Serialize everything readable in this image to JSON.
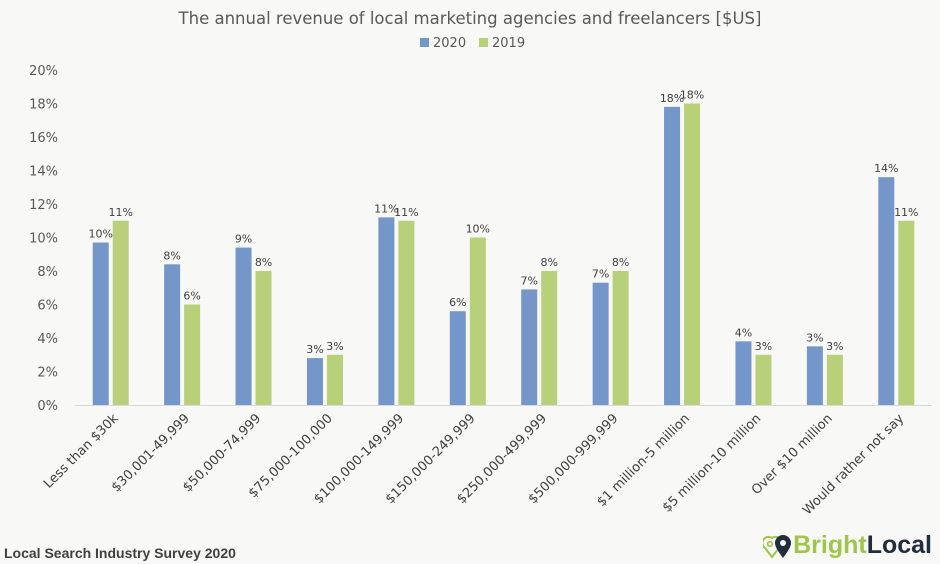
{
  "chart_data": {
    "type": "bar",
    "title": "The annual revenue of local marketing agencies and freelancers [$US]",
    "categories": [
      "Less than $30k",
      "$30,001-49,999",
      "$50,000-74,999",
      "$75,000-100,000",
      "$100,000-149,999",
      "$150,000-249,999",
      "$250,000-499,999",
      "$500,000-999,999",
      "$1 million-5 million",
      "$5 million-10 million",
      "Over $10 million",
      "Would rather not say"
    ],
    "series": [
      {
        "name": "2020",
        "color": "#7496c9",
        "values": [
          9.7,
          8.4,
          9.4,
          2.8,
          11.2,
          5.6,
          6.9,
          7.3,
          17.8,
          3.8,
          3.5,
          13.6
        ],
        "labels": [
          "10%",
          "8%",
          "9%",
          "3%",
          "11%",
          "6%",
          "7%",
          "7%",
          "18%",
          "4%",
          "3%",
          "14%"
        ]
      },
      {
        "name": "2019",
        "color": "#b8d07a",
        "values": [
          11,
          6,
          8,
          3,
          11,
          10,
          8,
          8,
          18,
          3,
          3,
          11
        ],
        "labels": [
          "11%",
          "6%",
          "8%",
          "3%",
          "11%",
          "10%",
          "8%",
          "8%",
          "18%",
          "3%",
          "3%",
          "11%"
        ]
      }
    ],
    "ylim": [
      0,
      20
    ],
    "yticks": [
      "0%",
      "2%",
      "4%",
      "6%",
      "8%",
      "10%",
      "12%",
      "14%",
      "16%",
      "18%",
      "20%"
    ],
    "xlabel": "",
    "ylabel": "",
    "grid": false,
    "legend": "top-center"
  },
  "footer": "Local Search Industry Survey 2020",
  "logo": {
    "part1": "Bright",
    "part2": "Local",
    "text": "BrightLocal"
  }
}
